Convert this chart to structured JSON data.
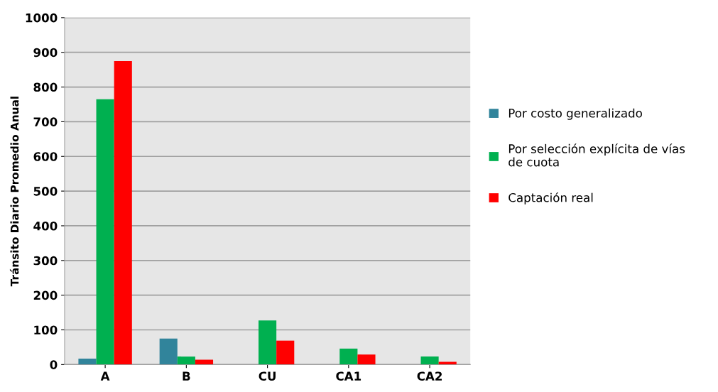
{
  "chart_data": {
    "type": "bar",
    "ylabel": "Tránsito Diario Promedio Anual",
    "categories": [
      "A",
      "B",
      "CU",
      "CA1",
      "CA2"
    ],
    "series": [
      {
        "name": "Por costo generalizado",
        "color": "#31849b",
        "values": [
          17,
          75,
          null,
          null,
          null
        ]
      },
      {
        "name": "Por selección explícita de vías\nde cuota",
        "color": "#00b050",
        "values": [
          765,
          23,
          127,
          46,
          23
        ]
      },
      {
        "name": "Captación real",
        "color": "#ff0000",
        "values": [
          875,
          14,
          69,
          29,
          8
        ]
      }
    ],
    "ylim": [
      0,
      1000
    ],
    "yticks": [
      0,
      100,
      200,
      300,
      400,
      500,
      600,
      700,
      800,
      900,
      1000
    ],
    "grid": "y",
    "legend": "right"
  }
}
